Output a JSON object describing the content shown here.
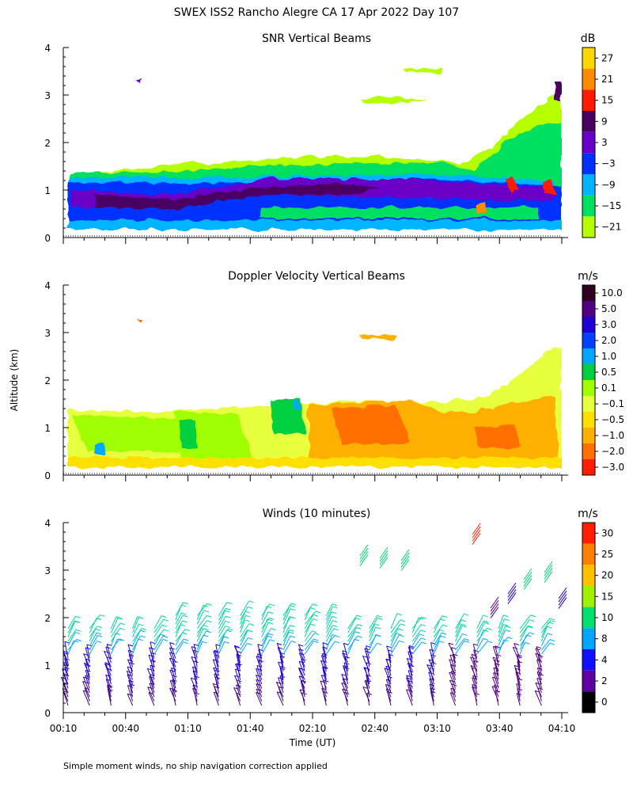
{
  "page_title": "SWEX ISS2 Rancho Alegre CA  17 Apr 2022 Day 107",
  "footnote": "Simple moment winds, no ship navigation correction applied",
  "chart_data": [
    {
      "type": "heatmap",
      "title": "SNR Vertical Beams",
      "ylabel": "",
      "xlabel": "",
      "ylim": [
        0,
        4
      ],
      "yticks": [
        "0",
        "1",
        "2",
        "3",
        "4"
      ],
      "units": "dB",
      "colorbar_labels": [
        "27",
        "21",
        "15",
        "9",
        "3",
        "−3",
        "−9",
        "−15",
        "−21"
      ],
      "colorbar_colors": [
        "#ffd700",
        "#ff8c00",
        "#ff1a00",
        "#4a0060",
        "#6a00c8",
        "#0030ff",
        "#00b4ff",
        "#00e060",
        "#b4ff00"
      ]
    },
    {
      "type": "heatmap",
      "title": "Doppler Velocity Vertical Beams",
      "ylabel": "Altitude (km)",
      "xlabel": "",
      "ylim": [
        0,
        4
      ],
      "yticks": [
        "0",
        "1",
        "2",
        "3",
        "4"
      ],
      "units": "m/s",
      "colorbar_labels": [
        "10.0",
        "5.0",
        "3.0",
        "2.0",
        "1.0",
        "0.5",
        "0.1",
        "−0.1",
        "−0.5",
        "−1.0",
        "−2.0",
        "−3.0"
      ],
      "colorbar_colors": [
        "#300020",
        "#500080",
        "#2000d0",
        "#0040ff",
        "#00a8ff",
        "#00d040",
        "#a0ff00",
        "#e8ff40",
        "#ffe000",
        "#ffb000",
        "#ff7000",
        "#ff2000"
      ]
    },
    {
      "type": "scatter",
      "title": "Winds (10 minutes)",
      "ylabel": "",
      "xlabel": "Time (UT)",
      "ylim": [
        0,
        4
      ],
      "yticks": [
        "0",
        "1",
        "2",
        "3",
        "4"
      ],
      "units": "m/s",
      "colorbar_labels": [
        "30",
        "25",
        "20",
        "15",
        "10",
        "8",
        "4",
        "2",
        "0"
      ],
      "colorbar_colors": [
        "#ff2000",
        "#ff8000",
        "#ffc000",
        "#a0f000",
        "#00e070",
        "#00a8ff",
        "#1010ff",
        "#6000a0",
        "#000000"
      ],
      "xticks": [
        "00:10",
        "00:40",
        "01:10",
        "01:40",
        "02:10",
        "02:40",
        "03:10",
        "03:40",
        "04:10"
      ]
    }
  ]
}
